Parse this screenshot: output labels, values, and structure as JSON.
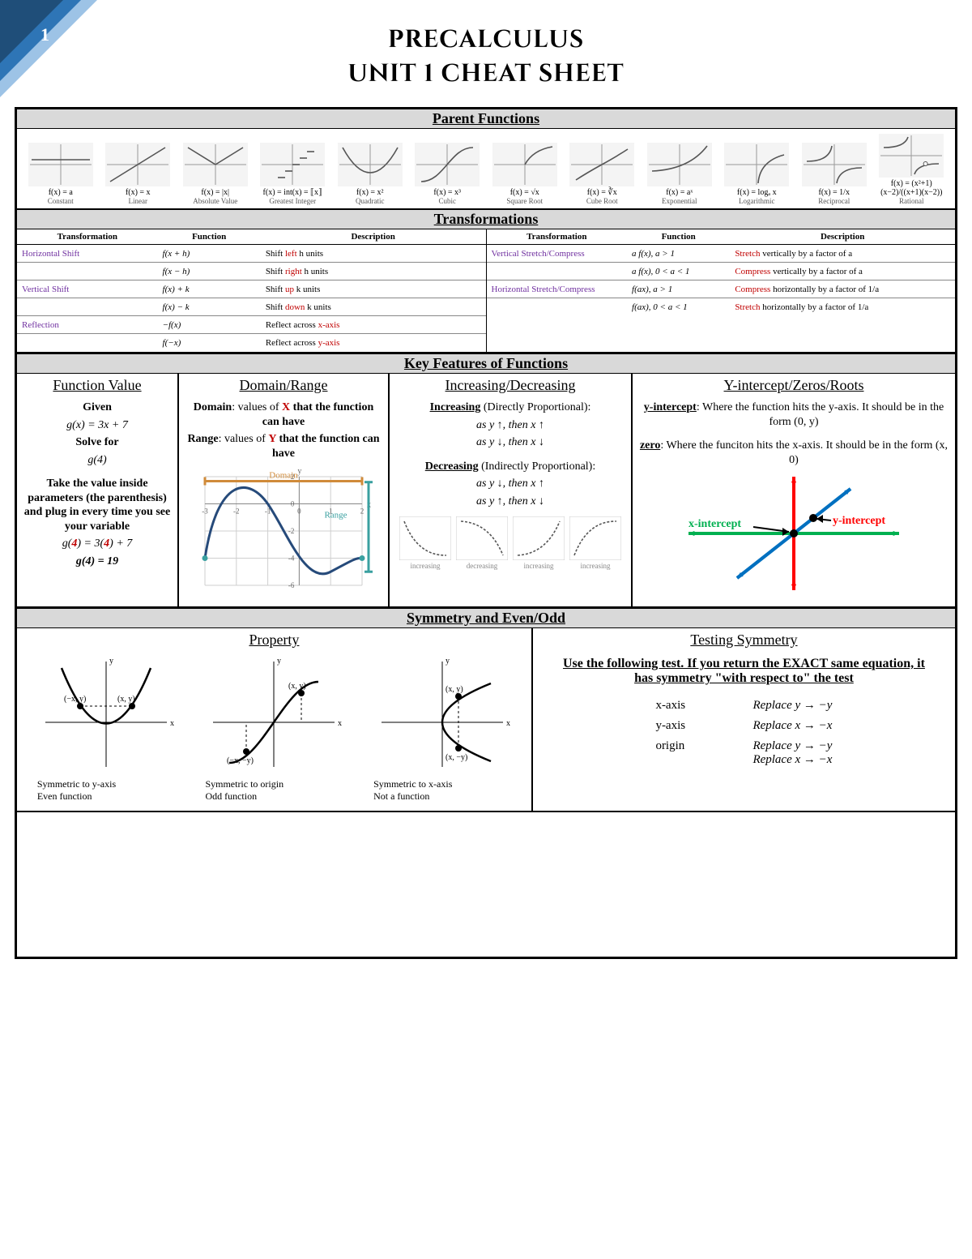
{
  "page_number": "1",
  "title_line1": "PRECALCULUS",
  "title_line2": "UNIT 1 CHEAT SHEET",
  "corner_colors": [
    "#1f4e79",
    "#2e75b6",
    "#9dc3e6"
  ],
  "sections": {
    "parent": "Parent Functions",
    "trans": "Transformations",
    "key": "Key Features of Functions",
    "sym": "Symmetry and Even/Odd"
  },
  "parent_functions": [
    {
      "fn": "f(x) = a",
      "name": "Constant"
    },
    {
      "fn": "f(x) = x",
      "name": "Linear"
    },
    {
      "fn": "f(x) = |x|",
      "name": "Absolute Value"
    },
    {
      "fn": "f(x) = int(x) = ⟦x⟧",
      "name": "Greatest Integer"
    },
    {
      "fn": "f(x) = x²",
      "name": "Quadratic"
    },
    {
      "fn": "f(x) = x³",
      "name": "Cubic"
    },
    {
      "fn": "f(x) = √x",
      "name": "Square Root"
    },
    {
      "fn": "f(x) = ∛x",
      "name": "Cube Root"
    },
    {
      "fn": "f(x) = aˣ",
      "name": "Exponential"
    },
    {
      "fn": "f(x) = logₐ x",
      "name": "Logarithmic"
    },
    {
      "fn": "f(x) = 1/x",
      "name": "Reciprocal"
    },
    {
      "fn": "f(x) = (x²+1)(x−2)/((x+1)(x−2))",
      "name": "Rational"
    }
  ],
  "trans_headers": {
    "t": "Transformation",
    "f": "Function",
    "d": "Description"
  },
  "trans_left": [
    {
      "name": "Horizontal Shift",
      "fn": "f(x + h)",
      "desc_pre": "Shift ",
      "desc_red": "left",
      "desc_post": " h units"
    },
    {
      "name": "",
      "fn": "f(x − h)",
      "desc_pre": "Shift ",
      "desc_red": "right",
      "desc_post": " h units"
    },
    {
      "name": "Vertical Shift",
      "fn": "f(x) + k",
      "desc_pre": "Shift ",
      "desc_red": "up",
      "desc_post": " k units"
    },
    {
      "name": "",
      "fn": "f(x) − k",
      "desc_pre": "Shift ",
      "desc_red": "down",
      "desc_post": " k units"
    },
    {
      "name": "Reflection",
      "fn": "−f(x)",
      "desc_pre": "Reflect across ",
      "desc_red": "x-axis",
      "desc_post": ""
    },
    {
      "name": "",
      "fn": "f(−x)",
      "desc_pre": "Reflect across ",
      "desc_red": "y-axis",
      "desc_post": ""
    }
  ],
  "trans_right": [
    {
      "name": "Vertical Stretch/Compress",
      "fn": "a f(x), a > 1",
      "desc_red": "Stretch",
      "desc_post": " vertically by a factor of a"
    },
    {
      "name": "",
      "fn": "a f(x), 0 < a < 1",
      "desc_red": "Compress",
      "desc_post": " vertically by a factor of a"
    },
    {
      "name": "Horizontal Stretch/Compress",
      "fn": "f(ax), a > 1",
      "desc_red": "Compress",
      "desc_post": " horizontally by a factor of 1/a"
    },
    {
      "name": "",
      "fn": "f(ax), 0 < a < 1",
      "desc_red": "Stretch",
      "desc_post": " horizontally by a factor of 1/a"
    }
  ],
  "kf": {
    "fv": {
      "title": "Function Value",
      "given": "Given",
      "eq": "g(x) = 3x + 7",
      "solve": "Solve for",
      "g4": "g(4)",
      "explain": "Take the value inside parameters (the parenthesis) and plug in every time you see your variable",
      "step1_a": "g(",
      "step1_b": "4",
      "step1_c": ") = 3(",
      "step1_d": "4",
      "step1_e": ") + 7",
      "result": "g(4) = 19"
    },
    "dr": {
      "title": "Domain/Range",
      "domain_lbl": "Domain",
      "domain_txt": ": values of ",
      "domain_x": "X",
      "domain_end": " that the function can have",
      "range_lbl": "Range",
      "range_txt": ": values of ",
      "range_y": "Y",
      "range_end": " that the function can have",
      "domain_word": "Domain",
      "range_word": "Range",
      "graph": {
        "x_ticks": [
          -3,
          -2,
          -1,
          0,
          1,
          2
        ],
        "y_ticks": [
          2,
          0,
          -2,
          -4,
          -6
        ],
        "domain_color": "#d08b3a",
        "range_color": "#3aa0a0",
        "curve_color": "#264a7a",
        "grid_color": "#cfcfcf"
      }
    },
    "id": {
      "title": "Increasing/Decreasing",
      "inc_lbl": "Increasing",
      "inc_paren": " (Directly Proportional):",
      "inc_l1": "as y ↑, then x ↑",
      "inc_l2": "as y ↓, then x ↓",
      "dec_lbl": "Decreasing",
      "dec_paren": " (Indirectly Proportional):",
      "dec_l1": "as y ↓, then x ↑",
      "dec_l2": "as y ↑, then x ↓",
      "mini_labels": [
        "increasing",
        "decreasing",
        "increasing",
        "increasing"
      ]
    },
    "yz": {
      "title": "Y-intercept/Zeros/Roots",
      "yint_lbl": "y-intercept",
      "yint_txt": ": Where the function hits the y-axis. It should be in the form (0, y)",
      "zero_lbl": "zero",
      "zero_txt": ": Where the funciton hits the x-axis. It should be in the form (x, 0)",
      "xlabel": "x-intercept",
      "ylabel": "y-intercept",
      "colors": {
        "x_axis": "#00b050",
        "y_axis": "#ff0000",
        "line": "#0070c0"
      }
    }
  },
  "sym": {
    "prop_title": "Property",
    "test_title": "Testing Symmetry",
    "props": [
      {
        "l1": "Symmetric to y-axis",
        "l2": "Even function",
        "pt1": "(−x, y)",
        "pt2": "(x, y)"
      },
      {
        "l1": "Symmetric to origin",
        "l2": "Odd function",
        "pt1": "(x, y)",
        "pt2": "(−x, −y)"
      },
      {
        "l1": "Symmetric to x-axis",
        "l2": "Not a function",
        "pt1": "(x, y)",
        "pt2": "(x, −y)"
      }
    ],
    "test_intro": "Use the following test. If you return the EXACT same equation, it has symmetry \"with respect to\" the test",
    "tests": [
      {
        "axis": "x-axis",
        "rep": [
          "Replace y → −y"
        ]
      },
      {
        "axis": "y-axis",
        "rep": [
          "Replace x → −x"
        ]
      },
      {
        "axis": "origin",
        "rep": [
          "Replace y → −y",
          "Replace x → −x"
        ]
      }
    ]
  }
}
